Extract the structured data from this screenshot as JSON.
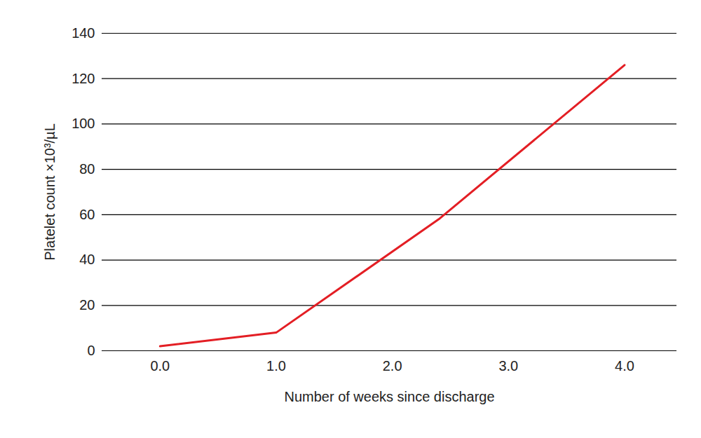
{
  "chart_data": {
    "type": "line",
    "x_label": "Number of weeks since discharge",
    "y_label": "Platelet count ×10³/µL",
    "series": [
      {
        "x": [
          0,
          1,
          2.4,
          4
        ],
        "values": [
          2,
          8,
          58,
          126
        ],
        "color": "#e31e24"
      }
    ],
    "xlim": [
      -0.5,
      4.45
    ],
    "xticks": [
      0,
      1,
      2,
      3,
      4
    ],
    "ylim": [
      0,
      140
    ],
    "yticks": [
      0,
      20,
      40,
      60,
      80,
      100,
      120,
      140
    ],
    "grid": true
  }
}
